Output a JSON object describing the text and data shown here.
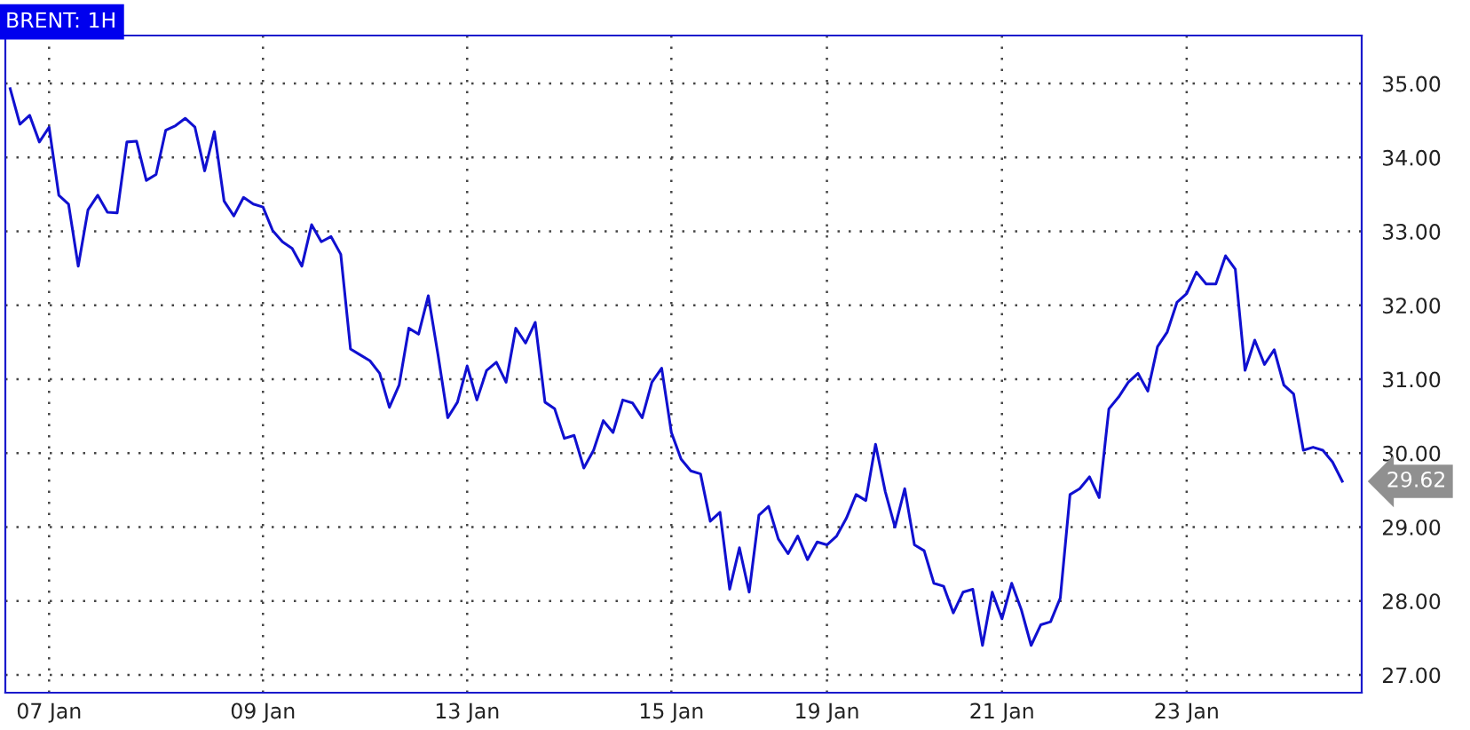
{
  "chart_data": {
    "type": "line",
    "title": "BRENT: 1H",
    "color": "#1010d0",
    "categories": [
      null,
      null,
      null,
      null,
      "07 Jan",
      null,
      null,
      null,
      null,
      null,
      null,
      null,
      null,
      null,
      null,
      null,
      null,
      null,
      null,
      null,
      null,
      null,
      null,
      null,
      null,
      null,
      "09 Jan",
      null,
      null,
      null,
      null,
      null,
      null,
      null,
      null,
      null,
      null,
      null,
      null,
      null,
      null,
      null,
      null,
      null,
      null,
      null,
      null,
      "13 Jan",
      null,
      null,
      null,
      null,
      null,
      null,
      null,
      null,
      null,
      null,
      null,
      null,
      null,
      null,
      null,
      null,
      null,
      null,
      null,
      null,
      "15 Jan",
      null,
      null,
      null,
      null,
      null,
      null,
      null,
      null,
      null,
      null,
      null,
      null,
      null,
      null,
      null,
      "19 Jan",
      null,
      null,
      null,
      null,
      null,
      null,
      null,
      null,
      null,
      null,
      null,
      null,
      null,
      null,
      null,
      null,
      null,
      "21 Jan",
      null,
      null,
      null,
      null,
      null,
      null,
      null,
      null,
      null,
      null,
      null,
      null,
      null,
      null,
      null,
      null,
      null,
      null,
      "23 Jan",
      null,
      null,
      null,
      null,
      null,
      null,
      null,
      null,
      null,
      null,
      null,
      null,
      null,
      null,
      null,
      null
    ],
    "values": [
      34.93,
      34.45,
      34.57,
      34.21,
      34.41,
      33.49,
      33.37,
      32.53,
      33.29,
      33.49,
      33.26,
      33.25,
      34.21,
      34.22,
      33.69,
      33.77,
      34.37,
      34.43,
      34.53,
      34.41,
      33.82,
      34.35,
      33.41,
      33.21,
      33.46,
      33.37,
      33.33,
      33.01,
      32.86,
      32.77,
      32.53,
      33.09,
      32.86,
      32.93,
      32.69,
      31.41,
      31.33,
      31.25,
      31.08,
      30.62,
      30.92,
      31.69,
      31.61,
      32.13,
      31.33,
      30.48,
      30.69,
      31.18,
      30.72,
      31.12,
      31.23,
      30.96,
      31.69,
      31.49,
      31.77,
      30.69,
      30.6,
      30.2,
      30.24,
      29.8,
      30.04,
      30.44,
      30.28,
      30.72,
      30.68,
      30.48,
      30.96,
      31.15,
      30.28,
      29.92,
      29.76,
      29.72,
      29.08,
      29.2,
      28.16,
      28.72,
      28.12,
      29.16,
      29.28,
      28.84,
      28.64,
      28.88,
      28.56,
      28.8,
      28.76,
      28.88,
      29.12,
      29.44,
      29.36,
      30.12,
      29.48,
      29.0,
      29.52,
      28.76,
      28.68,
      28.24,
      28.2,
      27.84,
      28.12,
      28.16,
      27.4,
      28.12,
      27.76,
      28.24,
      27.88,
      27.4,
      27.68,
      27.72,
      28.04,
      29.44,
      29.52,
      29.68,
      29.4,
      30.6,
      30.76,
      30.96,
      31.08,
      30.84,
      31.44,
      31.64,
      32.04,
      32.16,
      32.45,
      32.29,
      32.29,
      32.67,
      32.49,
      31.12,
      31.53,
      31.2,
      31.4,
      30.92,
      30.8,
      30.04,
      30.08,
      30.04,
      29.88,
      29.62
    ],
    "ylim": [
      26.76,
      35.65
    ],
    "yticks": [
      {
        "value": 27,
        "label": "27.00"
      },
      {
        "value": 28,
        "label": "28.00"
      },
      {
        "value": 29,
        "label": "29.00"
      },
      {
        "value": 30,
        "label": "30.00"
      },
      {
        "value": 31,
        "label": "31.00"
      },
      {
        "value": 32,
        "label": "32.00"
      },
      {
        "value": 33,
        "label": "33.00"
      },
      {
        "value": 34,
        "label": "34.00"
      },
      {
        "value": 35,
        "label": "35.00"
      }
    ],
    "grid": true,
    "line_style": "solid",
    "marker": "none",
    "annotations": [
      "29.62"
    ]
  }
}
